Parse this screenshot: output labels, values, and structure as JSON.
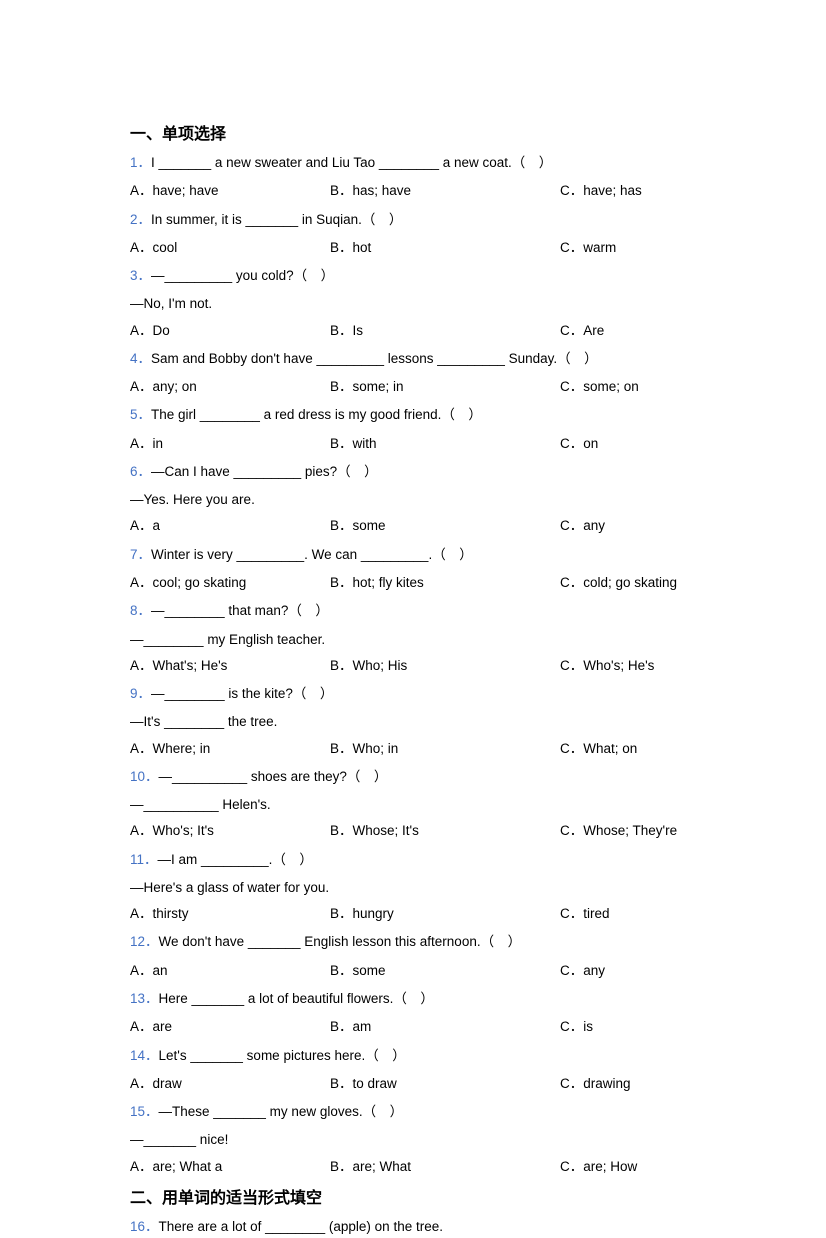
{
  "colors": {
    "qnum": "#4472c4",
    "text": "#000000",
    "background": "#ffffff"
  },
  "typography": {
    "section_title_size": 16,
    "body_size": 13.5,
    "line_height": 1.65
  },
  "section1": {
    "title": "一、单项选择",
    "questions": [
      {
        "num": "1．",
        "text": "I _______ a new sweater and Liu Tao ________ a new coat.（ ）",
        "opts": {
          "a": "A．have; have",
          "b": "B．has; have",
          "c": "C．have; has"
        }
      },
      {
        "num": "2．",
        "text": "In summer, it is _______ in Suqian.（ ）",
        "opts": {
          "a": "A．cool",
          "b": "B．hot",
          "c": "C．warm"
        }
      },
      {
        "num": "3．",
        "text": "—_________ you cold?（ ）",
        "followup": "—No, I'm not.",
        "opts": {
          "a": "A．Do",
          "b": "B．Is",
          "c": "C．Are"
        }
      },
      {
        "num": "4．",
        "text": "Sam and Bobby don't have _________ lessons _________ Sunday.（ ）",
        "opts": {
          "a": "A．any; on",
          "b": "B．some; in",
          "c": "C．some; on"
        }
      },
      {
        "num": "5．",
        "text": "The girl ________ a red dress is my good friend.（ ）",
        "opts": {
          "a": "A．in",
          "b": "B．with",
          "c": "C．on"
        }
      },
      {
        "num": "6．",
        "text": "—Can I have _________ pies?（ ）",
        "followup": "—Yes. Here you are.",
        "opts": {
          "a": "A．a",
          "b": "B．some",
          "c": "C．any"
        }
      },
      {
        "num": "7．",
        "text": "Winter is very _________. We can _________.（ ）",
        "opts": {
          "a": "A．cool; go skating",
          "b": "B．hot; fly kites",
          "c": "C．cold; go skating"
        }
      },
      {
        "num": "8．",
        "text": "—________ that man?（ ）",
        "followup": "—________ my English teacher.",
        "opts": {
          "a": "A．What's; He's",
          "b": "B．Who; His",
          "c": "C．Who's; He's"
        }
      },
      {
        "num": "9．",
        "text": "—________ is the kite?（ ）",
        "followup": "—It's ________ the tree.",
        "opts": {
          "a": "A．Where; in",
          "b": "B．Who; in",
          "c": "C．What; on"
        }
      },
      {
        "num": "10．",
        "text": "—__________ shoes are they?（ ）",
        "followup": "—__________ Helen's.",
        "opts": {
          "a": "A．Who's; It's",
          "b": "B．Whose; It's",
          "c": "C．Whose; They're"
        }
      },
      {
        "num": "11．",
        "text": "—I am _________.（ ）",
        "followup": "—Here's a glass of water for you.",
        "opts": {
          "a": "A．thirsty",
          "b": "B．hungry",
          "c": "C．tired"
        }
      },
      {
        "num": "12．",
        "text": "We don't have _______ English lesson this afternoon.（ ）",
        "opts": {
          "a": "A．an",
          "b": "B．some",
          "c": "C．any"
        }
      },
      {
        "num": "13．",
        "text": "Here _______ a lot of beautiful flowers.（ ）",
        "opts": {
          "a": "A．are",
          "b": "B．am",
          "c": "C．is"
        }
      },
      {
        "num": "14．",
        "text": "Let's _______ some pictures here.（ ）",
        "opts": {
          "a": "A．draw",
          "b": "B．to draw",
          "c": "C．drawing"
        }
      },
      {
        "num": "15．",
        "text": "—These _______ my new gloves.（ ）",
        "followup": "—_______ nice!",
        "opts": {
          "a": "A．are; What a",
          "b": "B．are; What",
          "c": "C．are; How"
        }
      }
    ]
  },
  "section2": {
    "title": "二、用单词的适当形式填空",
    "questions": [
      {
        "num": "16．",
        "text": "There are a lot of ________ (apple) on the tree."
      }
    ]
  }
}
